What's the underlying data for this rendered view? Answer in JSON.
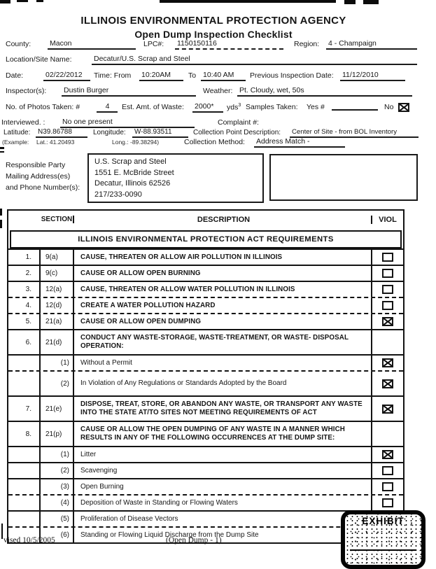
{
  "page": {
    "title_line1": "ILLINOIS ENVIRONMENTAL PROTECTION AGENCY",
    "title_line2": "Open Dump Inspection Checklist"
  },
  "form": {
    "county_label": "County:",
    "county": "Macon",
    "lpc_label": "LPC#:",
    "lpc": "1150150116",
    "region_label": "Region:",
    "region": "4 - Champaign",
    "location_label": "Location/Site Name:",
    "location": "Decatur/U.S. Scrap and Steel",
    "date_label": "Date:",
    "date": "02/22/2012",
    "time_label": "Time: From",
    "time_from": "10:20AM",
    "to_label": "To",
    "time_to": "10:40 AM",
    "prev_inspection_label": "Previous Inspection Date:",
    "prev_inspection": "11/12/2010",
    "inspector_label": "Inspector(s):",
    "inspector": "Dustin Burger",
    "weather_label": "Weather:",
    "weather": "Pt. Cloudy, wet, 50s",
    "photos_label": "No. of Photos Taken: #",
    "photos": "4",
    "waste_label": "Est. Amt. of Waste:",
    "waste": "2000*",
    "waste_unit": "yds",
    "waste_unit_sup": "3",
    "samples_label": "Samples Taken:",
    "samples_yes_label": "Yes #",
    "samples_no_label": "No",
    "samples_no_checked": "checked",
    "interviewed_label": "Interviewed. :",
    "interviewed": "No one present",
    "complaint_label": "Complaint #:",
    "latitude_label": "Latitude:",
    "latitude": "N39.86788",
    "longitude_label": "Longitude:",
    "longitude": "W-88.93511",
    "cpd_label": "Collection Point Description:",
    "cpd": "Center of Site - from BOL Inventory",
    "example_label": "(Example:",
    "example_lat": "Lat.: 41.20493",
    "example_long": "Long.: -89.38294)",
    "method_label": "Collection Method:",
    "method": "Address Match -",
    "responsible_label_1": "Responsible Party",
    "responsible_label_2": "Mailing Address(es)",
    "responsible_label_3": "and Phone Number(s):",
    "responsible_party": {
      "line1": "U.S. Scrap and Steel",
      "line2": "1551 E. McBride Street",
      "line3": "Decatur, Illinois  62526",
      "line4": "217/233-0090"
    }
  },
  "table": {
    "headers": {
      "num": "",
      "section": "SECTION",
      "description": "DESCRIPTION",
      "viol": "VIOL"
    },
    "band": "ILLINOIS ENVIRONMENTAL PROTECTION ACT REQUIREMENTS",
    "rows": [
      {
        "num": "1.",
        "section": "9(a)",
        "desc": "CAUSE, THREATEN OR ALLOW AIR POLLUTION IN ILLINOIS",
        "viol": "unchecked"
      },
      {
        "num": "2.",
        "section": "9(c)",
        "desc": "CAUSE OR ALLOW OPEN BURNING",
        "viol": "unchecked"
      },
      {
        "num": "3.",
        "section": "12(a)",
        "desc": "CAUSE, THREATEN OR ALLOW WATER POLLUTION IN ILLINOIS",
        "viol": "unchecked"
      },
      {
        "num": "4.",
        "section": "12(d)",
        "desc": "CREATE A WATER POLLUTION HAZARD",
        "viol": "unchecked"
      },
      {
        "num": "5.",
        "section": "21(a)",
        "desc": "CAUSE OR ALLOW OPEN DUMPING",
        "viol": "checked"
      },
      {
        "num": "6.",
        "section": "21(d)",
        "desc": "CONDUCT ANY WASTE-STORAGE, WASTE-TREATMENT, OR WASTE- DISPOSAL OPERATION:",
        "viol": "none"
      },
      {
        "num": "",
        "section": "(1)",
        "desc": "Without a Permit",
        "viol": "checked"
      },
      {
        "num": "",
        "section": "(2)",
        "desc": "In Violation of Any Regulations or Standards Adopted by the Board",
        "viol": "checked"
      },
      {
        "num": "7.",
        "section": "21(e)",
        "desc": "DISPOSE, TREAT, STORE, OR ABANDON ANY WASTE, OR TRANSPORT ANY WASTE INTO THE STATE AT/TO SITES NOT MEETING REQUIREMENTS OF ACT",
        "viol": "checked"
      },
      {
        "num": "8.",
        "section": "21(p)",
        "desc": "CAUSE OR ALLOW THE OPEN DUMPING OF ANY WASTE IN A MANNER WHICH RESULTS IN ANY OF THE FOLLOWING OCCURRENCES AT THE DUMP SITE:",
        "viol": "none"
      },
      {
        "num": "",
        "section": "(1)",
        "desc": "Litter",
        "viol": "checked"
      },
      {
        "num": "",
        "section": "(2)",
        "desc": "Scavenging",
        "viol": "unchecked"
      },
      {
        "num": "",
        "section": "(3)",
        "desc": "Open Burning",
        "viol": "unchecked"
      },
      {
        "num": "",
        "section": "(4)",
        "desc": "Deposition of Waste in Standing or Flowing Waters",
        "viol": "unchecked"
      },
      {
        "num": "",
        "section": "(5)",
        "desc": "Proliferation of Disease Vectors",
        "viol": "unchecked"
      },
      {
        "num": "",
        "section": "(6)",
        "desc": "Standing or Flowing Liquid Discharge from the Dump Site",
        "viol": "unchecked"
      }
    ]
  },
  "footer": {
    "revised": "vised 10/5/2005",
    "page_label": "(Open Dump - 1)",
    "exhibit": "EXHIBIT"
  }
}
